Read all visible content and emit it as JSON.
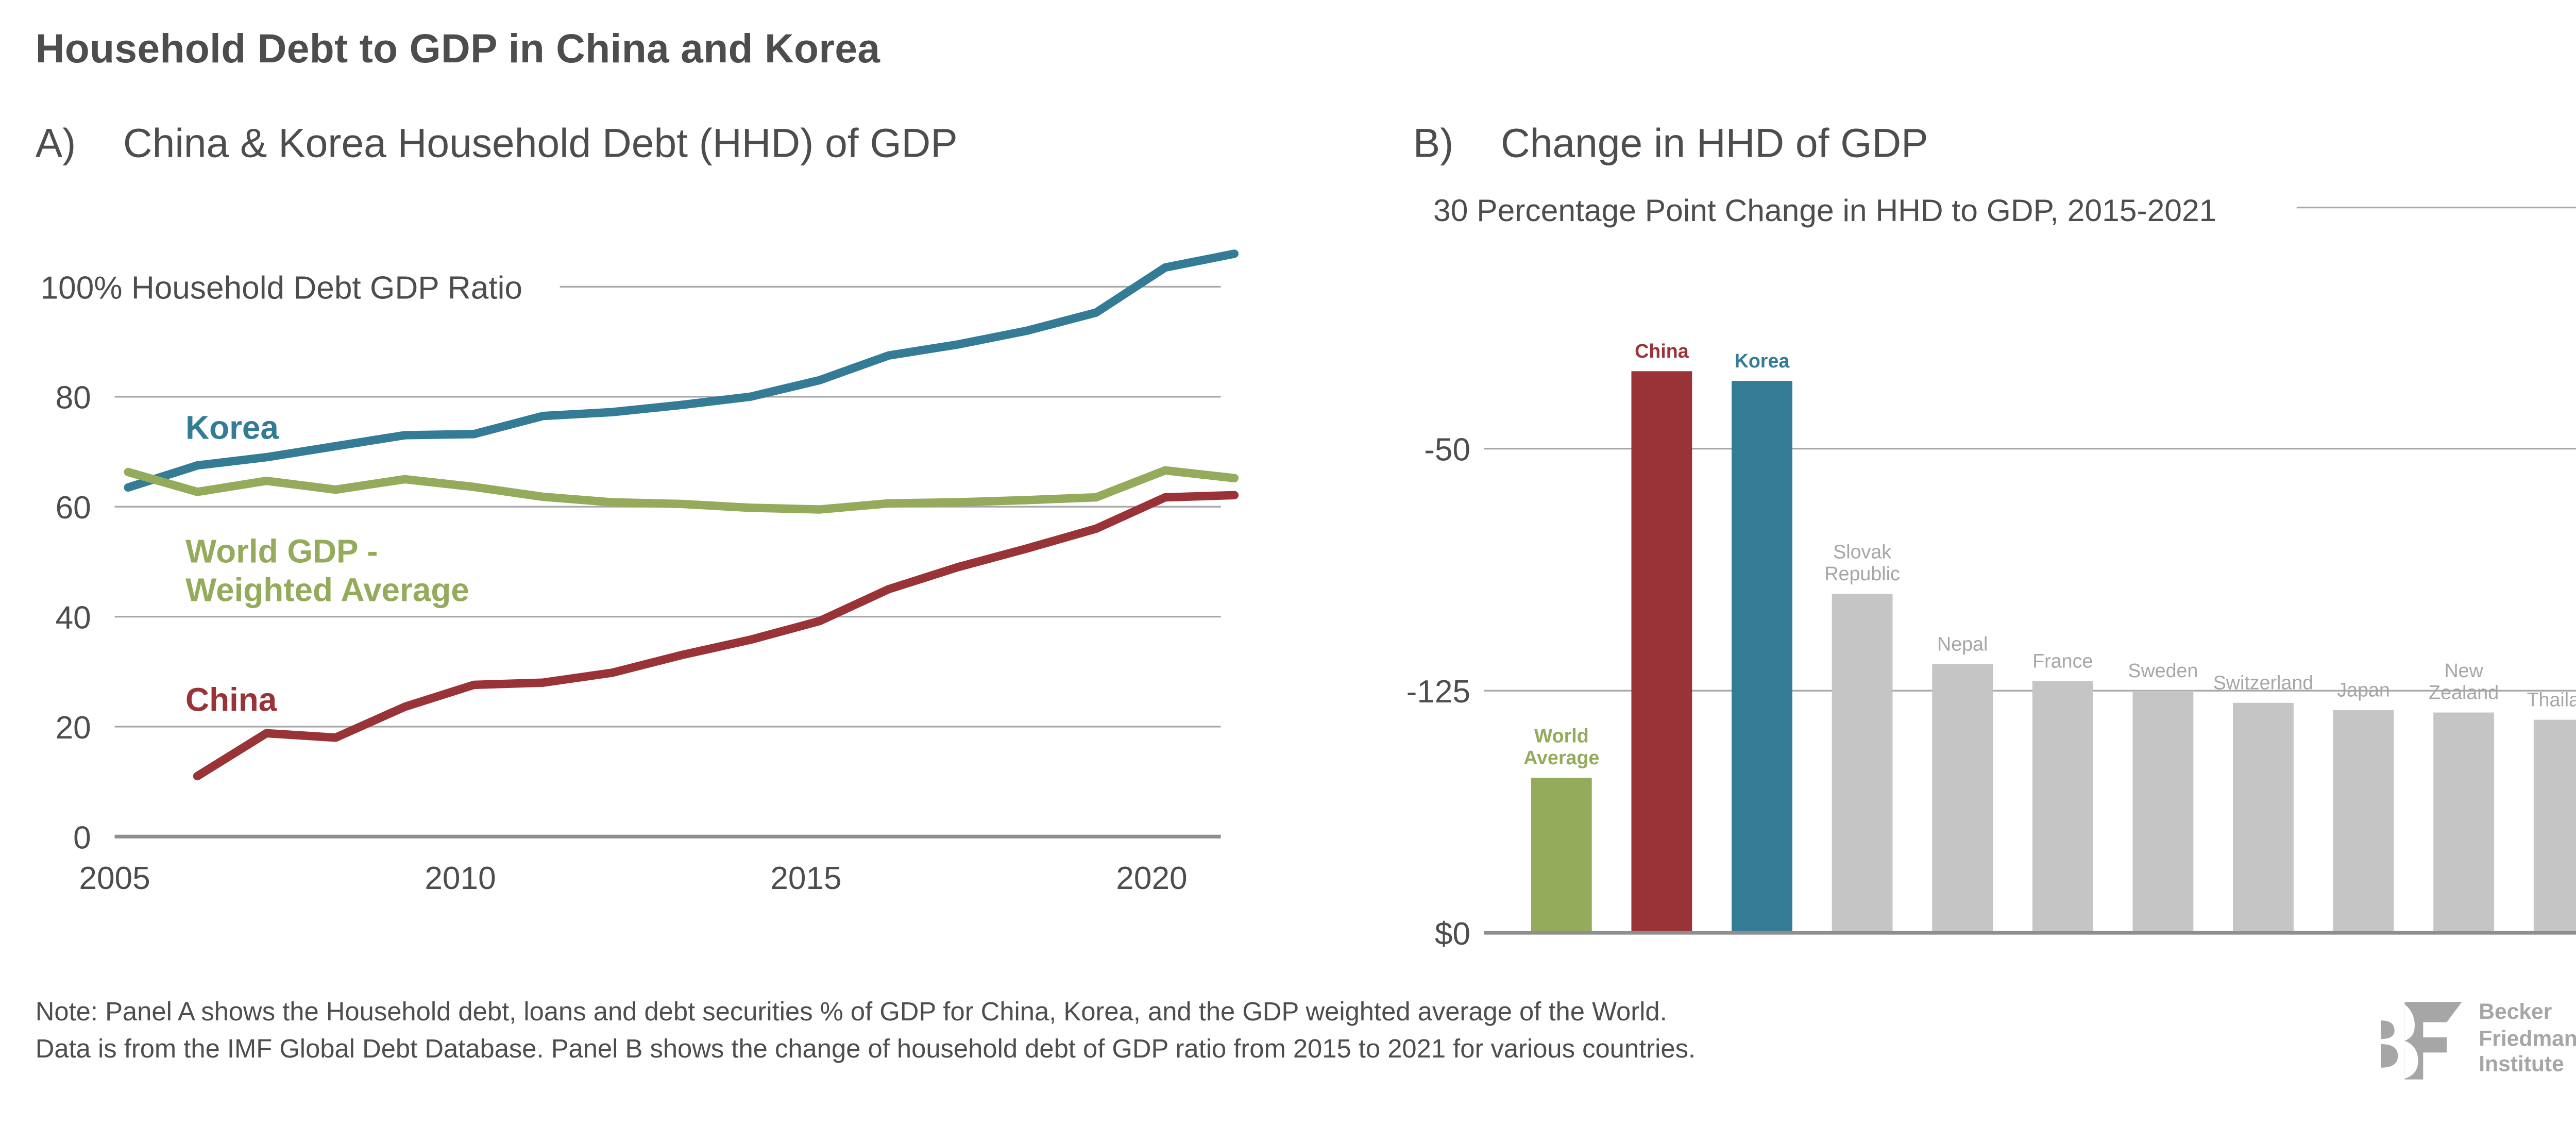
{
  "title": "Household Debt to GDP in China and Korea",
  "panel_a": {
    "letter": "A)",
    "title": "China & Korea Household Debt (HHD) of GDP"
  },
  "panel_b": {
    "letter": "B)",
    "title": "Change in HHD of GDP"
  },
  "footnote": {
    "line1": "Note: Panel A shows the Household debt, loans and debt securities % of GDP for China, Korea, and the GDP weighted average of the World.",
    "line2": "Data is from the IMF Global Debt Database. Panel B shows the change of household debt of GDP ratio from 2015 to 2021 for various countries."
  },
  "logo": {
    "mark": "BF",
    "line1": "Becker",
    "line2": "Friedman",
    "line3": "Institute"
  },
  "colors": {
    "korea": "#347c95",
    "china": "#993337",
    "world": "#93ab5a",
    "other": "#c5c5c5",
    "grid": "#a8a8a8",
    "text": "#4d4d4f"
  },
  "chart_data": [
    {
      "type": "line",
      "title": "China & Korea Household Debt (HHD) of GDP",
      "ylabel": "100% Household Debt GDP Ratio",
      "xlabel": "",
      "xlim": [
        2005,
        2021
      ],
      "ylim": [
        0,
        100
      ],
      "x_ticks": [
        2005,
        2010,
        2015,
        2020
      ],
      "y_ticks": [
        0,
        20,
        40,
        60,
        80,
        100
      ],
      "y_tick_labels": [
        "0",
        "20",
        "40",
        "60",
        "80",
        "100% Household Debt GDP Ratio"
      ],
      "grid": true,
      "legend": "inline-labels-left",
      "series": [
        {
          "name": "Korea",
          "label": "Korea",
          "color": "#347c95",
          "x": [
            2005,
            2006,
            2007,
            2008,
            2009,
            2010,
            2011,
            2012,
            2013,
            2014,
            2015,
            2016,
            2017,
            2018,
            2019,
            2020,
            2021
          ],
          "values": [
            63.5,
            67.5,
            69.0,
            71.0,
            73.0,
            73.2,
            76.5,
            77.2,
            78.5,
            80.0,
            83.0,
            87.5,
            89.5,
            92.0,
            95.3,
            103.5,
            106.0
          ],
          "label_value": 74.5
        },
        {
          "name": "World GDP - Weighted Average",
          "label": "World GDP -\nWeighted Average",
          "label_lines": [
            "World GDP -",
            "Weighted Average"
          ],
          "color": "#93ab5a",
          "x": [
            2005,
            2006,
            2007,
            2008,
            2009,
            2010,
            2011,
            2012,
            2013,
            2014,
            2015,
            2016,
            2017,
            2018,
            2019,
            2020,
            2021
          ],
          "values": [
            66.3,
            62.7,
            64.7,
            63.1,
            65.0,
            63.6,
            61.8,
            60.8,
            60.5,
            59.8,
            59.5,
            60.6,
            60.8,
            61.2,
            61.7,
            66.6,
            65.2
          ],
          "label_value": 52
        },
        {
          "name": "China",
          "label": "China",
          "color": "#993337",
          "x": [
            2006,
            2007,
            2008,
            2009,
            2010,
            2011,
            2012,
            2013,
            2014,
            2015,
            2016,
            2017,
            2018,
            2019,
            2020,
            2021
          ],
          "values": [
            11.0,
            18.8,
            18.0,
            23.6,
            27.6,
            28.0,
            29.8,
            33.0,
            35.8,
            39.2,
            45.0,
            49.0,
            52.4,
            56.0,
            61.7,
            62.1
          ],
          "label_value": 25
        }
      ]
    },
    {
      "type": "bar",
      "title": "Change in HHD of GDP",
      "subtitle": "30 Percentage Point Change in HHD to GDP, 2015-2021",
      "xlabel": "",
      "ylabel": "",
      "y_ticks": [
        0,
        1,
        2
      ],
      "y_tick_labels": [
        "$0",
        "-125",
        "-50"
      ],
      "ylim": [
        0,
        2.45
      ],
      "value_units": "gridline intervals (axis tick labels as printed)",
      "grid": true,
      "categories": [
        "World Average",
        "China",
        "Korea",
        "Slovak Republic",
        "Nepal",
        "France",
        "Sweden",
        "Switzerland",
        "Japan",
        "New Zealand",
        "Thailand"
      ],
      "category_label_lines": [
        [
          "World",
          "Average"
        ],
        [
          "China"
        ],
        [
          "Korea"
        ],
        [
          "Slovak",
          "Republic"
        ],
        [
          "Nepal"
        ],
        [
          "France"
        ],
        [
          "Sweden"
        ],
        [
          "Switzerland"
        ],
        [
          "Japan"
        ],
        [
          "New",
          "Zealand"
        ],
        [
          "Thailand"
        ]
      ],
      "values": [
        0.64,
        2.32,
        2.28,
        1.4,
        1.11,
        1.04,
        1.0,
        0.95,
        0.92,
        0.91,
        0.88
      ],
      "bar_colors": [
        "#93ab5a",
        "#993337",
        "#347c95",
        "#c5c5c5",
        "#c5c5c5",
        "#c5c5c5",
        "#c5c5c5",
        "#c5c5c5",
        "#c5c5c5",
        "#c5c5c5",
        "#c5c5c5"
      ],
      "label_colors": [
        "#93ab5a",
        "#993337",
        "#347c95",
        "#a6a6a6",
        "#a6a6a6",
        "#a6a6a6",
        "#a6a6a6",
        "#a6a6a6",
        "#a6a6a6",
        "#a6a6a6",
        "#a6a6a6"
      ]
    }
  ]
}
